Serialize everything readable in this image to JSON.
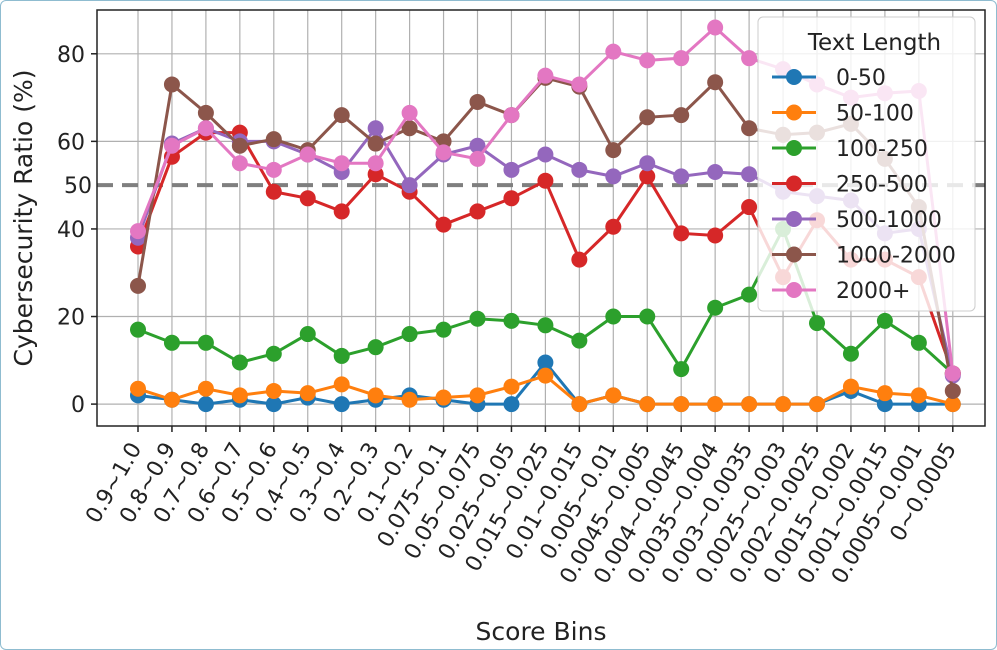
{
  "chart_data": {
    "type": "line",
    "xlabel": "Score Bins",
    "ylabel": "Cybersecurity Ratio (%)",
    "ylim": [
      -5,
      90
    ],
    "yticks": [
      0,
      20,
      40,
      60,
      80
    ],
    "grid": true,
    "categories": [
      "0.9~1.0",
      "0.8~0.9",
      "0.7~0.8",
      "0.6~0.7",
      "0.5~0.6",
      "0.4~0.5",
      "0.3~0.4",
      "0.2~0.3",
      "0.1~0.2",
      "0.075~0.1",
      "0.05~0.075",
      "0.025~0.05",
      "0.015~0.025",
      "0.01~0.015",
      "0.005~0.01",
      "0.0045~0.005",
      "0.004~0.0045",
      "0.0035~0.004",
      "0.003~0.0035",
      "0.0025~0.003",
      "0.002~0.0025",
      "0.0015~0.002",
      "0.001~0.0015",
      "0.0005~0.001",
      "0~0.0005"
    ],
    "reference_line": {
      "value": 50,
      "label": "50",
      "color": "#7f7f7f",
      "style": "dashed"
    },
    "legend": {
      "title": "Text Length",
      "position": "top-right"
    },
    "series": [
      {
        "name": "0-50",
        "color": "#1f77b4",
        "values": [
          2,
          1,
          0,
          1,
          0,
          1.5,
          0,
          1,
          2,
          1,
          0,
          0,
          9.5,
          0,
          2,
          0,
          0,
          0,
          0,
          0,
          0,
          3,
          0,
          0,
          0
        ]
      },
      {
        "name": "50-100",
        "color": "#ff7f0e",
        "values": [
          3.5,
          1,
          3.5,
          2,
          3,
          2.5,
          4.5,
          2,
          1,
          1.5,
          2,
          4,
          6.5,
          0,
          2,
          0,
          0,
          0,
          0,
          0,
          0,
          4,
          2.5,
          2,
          0
        ]
      },
      {
        "name": "100-250",
        "color": "#2ca02c",
        "values": [
          17,
          14,
          14,
          9.5,
          11.5,
          16,
          11,
          13,
          16,
          17,
          19.5,
          19,
          18,
          14.5,
          20,
          20,
          8,
          22,
          25,
          40,
          18.5,
          11.5,
          19,
          14,
          7
        ]
      },
      {
        "name": "250-500",
        "color": "#d62728",
        "values": [
          36,
          56.5,
          62,
          62,
          48.5,
          47,
          44,
          52.5,
          48.5,
          41,
          44,
          47,
          51,
          33,
          40.5,
          52,
          39,
          38.5,
          45,
          29,
          42,
          33,
          33,
          29,
          7
        ]
      },
      {
        "name": "500-1000",
        "color": "#9467bd",
        "values": [
          38,
          59.5,
          63,
          60,
          60,
          57,
          53,
          63,
          50,
          57,
          59,
          53.5,
          57,
          53.5,
          52,
          55,
          52,
          53,
          52.5,
          48.5,
          47.5,
          46.5,
          39,
          40,
          6.5
        ]
      },
      {
        "name": "1000-2000",
        "color": "#8c564b",
        "values": [
          27,
          73,
          66.5,
          59,
          60.5,
          58,
          66,
          59.5,
          63,
          60,
          69,
          66,
          74.5,
          72.5,
          58,
          65.5,
          66,
          73.5,
          63,
          61.5,
          62,
          64,
          56,
          45,
          3
        ]
      },
      {
        "name": "2000+",
        "color": "#e377c2",
        "values": [
          39.5,
          59,
          63,
          55,
          53.5,
          57,
          55,
          55,
          66.5,
          57.5,
          56,
          66,
          75,
          73,
          80.5,
          78.5,
          79,
          86,
          79,
          76.5,
          73,
          70,
          71,
          71.5,
          7
        ]
      }
    ]
  }
}
